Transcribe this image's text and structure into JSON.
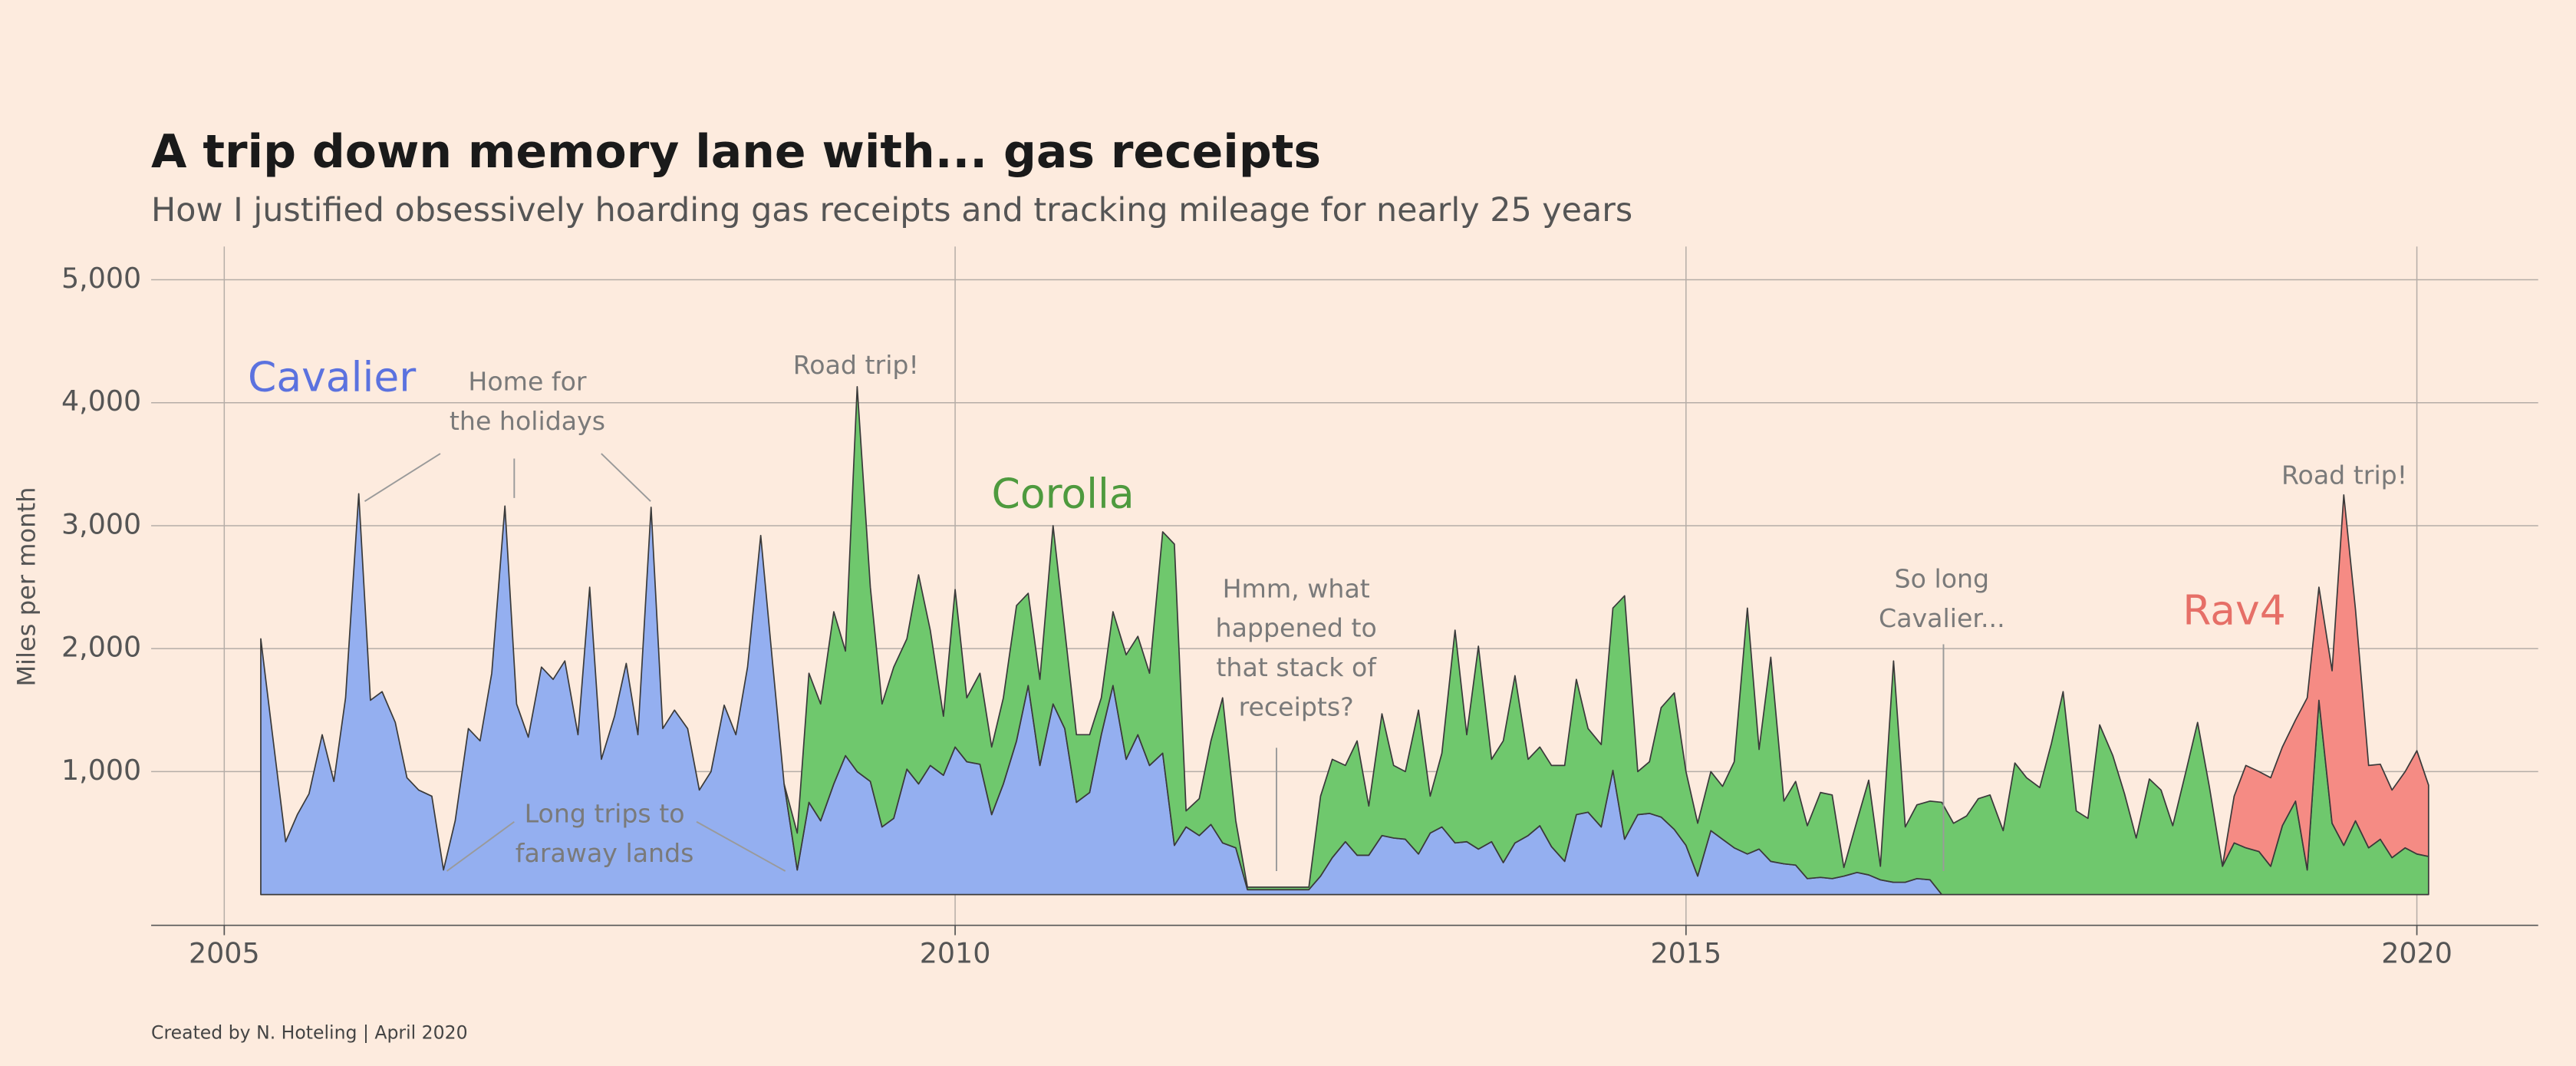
{
  "chart_data": {
    "type": "stacked_area",
    "title": "A trip down memory lane with... gas receipts",
    "subtitle": "How I justified obsessively hoarding gas receipts and tracking mileage for nearly 25 years",
    "ylabel": "Miles per month",
    "caption": "Created by N. Hoteling | April 2020",
    "xlim": [
      2004.5,
      2020.83
    ],
    "xticks": [
      2005,
      2010,
      2015,
      2020
    ],
    "ylim": [
      -250,
      5270
    ],
    "yticks": [
      {
        "value": 1000,
        "label": "1,000"
      },
      {
        "value": 2000,
        "label": "2,000"
      },
      {
        "value": 3000,
        "label": "3,000"
      },
      {
        "value": 4000,
        "label": "4,000"
      },
      {
        "value": 5000,
        "label": "5,000"
      }
    ],
    "grid": true,
    "x": [
      2005.25,
      2005.33,
      2005.42,
      2005.5,
      2005.58,
      2005.67,
      2005.75,
      2005.83,
      2005.92,
      2006.0,
      2006.08,
      2006.17,
      2006.25,
      2006.33,
      2006.42,
      2006.5,
      2006.58,
      2006.67,
      2006.75,
      2006.83,
      2006.92,
      2007.0,
      2007.08,
      2007.17,
      2007.25,
      2007.33,
      2007.42,
      2007.5,
      2007.58,
      2007.67,
      2007.75,
      2007.83,
      2007.92,
      2008.0,
      2008.08,
      2008.17,
      2008.25,
      2008.33,
      2008.42,
      2008.5,
      2008.58,
      2008.67,
      2008.75,
      2008.83,
      2008.92,
      2009.0,
      2009.08,
      2009.17,
      2009.25,
      2009.33,
      2009.42,
      2009.5,
      2009.58,
      2009.67,
      2009.75,
      2009.83,
      2009.92,
      2010.0,
      2010.08,
      2010.17,
      2010.25,
      2010.33,
      2010.42,
      2010.5,
      2010.58,
      2010.67,
      2010.75,
      2010.83,
      2010.92,
      2011.0,
      2011.08,
      2011.17,
      2011.25,
      2011.33,
      2011.42,
      2011.5,
      2011.58,
      2011.67,
      2011.75,
      2011.83,
      2011.92,
      2012.0,
      2012.08,
      2012.17,
      2012.25,
      2012.33,
      2012.42,
      2012.5,
      2012.58,
      2012.67,
      2012.75,
      2012.83,
      2012.92,
      2013.0,
      2013.08,
      2013.17,
      2013.25,
      2013.33,
      2013.42,
      2013.5,
      2013.58,
      2013.67,
      2013.75,
      2013.83,
      2013.92,
      2014.0,
      2014.08,
      2014.17,
      2014.25,
      2014.33,
      2014.42,
      2014.5,
      2014.58,
      2014.67,
      2014.75,
      2014.83,
      2014.92,
      2015.0,
      2015.08,
      2015.17,
      2015.25,
      2015.33,
      2015.42,
      2015.5,
      2015.58,
      2015.67,
      2015.75,
      2015.83,
      2015.92,
      2016.0,
      2016.08,
      2016.17,
      2016.25,
      2016.33,
      2016.42,
      2016.5,
      2016.58,
      2016.67,
      2016.75,
      2016.83,
      2016.92,
      2017.0,
      2017.08,
      2017.17,
      2017.25,
      2017.33,
      2017.42,
      2017.5,
      2017.58,
      2017.67,
      2017.75,
      2017.83,
      2017.92,
      2018.0,
      2018.08,
      2018.17,
      2018.25,
      2018.33,
      2018.42,
      2018.5,
      2018.58,
      2018.67,
      2018.75,
      2018.83,
      2018.92,
      2019.0,
      2019.08,
      2019.17,
      2019.25,
      2019.33,
      2019.42,
      2019.5,
      2019.58,
      2019.67,
      2019.75,
      2019.83,
      2019.92,
      2020.0,
      2020.08
    ],
    "series": [
      {
        "name": "Cavalier",
        "color": "#94aff0",
        "label_color": "#5b72df",
        "values": [
          2080,
          1300,
          430,
          650,
          820,
          1300,
          920,
          1600,
          3260,
          1580,
          1650,
          1400,
          950,
          850,
          800,
          200,
          600,
          1350,
          1250,
          1800,
          3160,
          1550,
          1280,
          1850,
          1750,
          1900,
          1300,
          2500,
          1100,
          1450,
          1880,
          1300,
          3150,
          1350,
          1500,
          1350,
          850,
          1000,
          1540,
          1300,
          1850,
          2920,
          1900,
          900,
          200,
          750,
          600,
          900,
          1130,
          1000,
          920,
          550,
          620,
          1020,
          900,
          1050,
          970,
          1200,
          1080,
          1060,
          650,
          900,
          1250,
          1700,
          1050,
          1550,
          1350,
          750,
          830,
          1300,
          1700,
          1100,
          1300,
          1050,
          1150,
          400,
          550,
          480,
          570,
          420,
          380,
          40,
          40,
          40,
          40,
          40,
          40,
          150,
          300,
          430,
          320,
          320,
          480,
          460,
          450,
          330,
          500,
          550,
          420,
          430,
          370,
          430,
          260,
          420,
          480,
          560,
          390,
          270,
          650,
          670,
          550,
          1010,
          450,
          650,
          660,
          630,
          530,
          400,
          150,
          520,
          450,
          380,
          330,
          370,
          270,
          250,
          240,
          130,
          140,
          130,
          150,
          180,
          160,
          120,
          100,
          100,
          130,
          120,
          0,
          null,
          null,
          null,
          null,
          null,
          null,
          null,
          null,
          null,
          null,
          null,
          null,
          null,
          null,
          null,
          null,
          null,
          null,
          null,
          null,
          null,
          null,
          null,
          null,
          null,
          null,
          null,
          null,
          null,
          null,
          null,
          null,
          null,
          null,
          null,
          null,
          null,
          null,
          null,
          null
        ]
      },
      {
        "name": "Corolla",
        "color": "#6fc86d",
        "label_color": "#4e9a3e",
        "values": [
          null,
          null,
          null,
          null,
          null,
          null,
          null,
          null,
          null,
          null,
          null,
          null,
          null,
          null,
          null,
          null,
          null,
          null,
          null,
          null,
          null,
          null,
          null,
          null,
          null,
          null,
          null,
          null,
          null,
          null,
          null,
          null,
          null,
          null,
          null,
          null,
          null,
          null,
          null,
          null,
          null,
          null,
          null,
          0,
          300,
          1050,
          950,
          1400,
          850,
          3130,
          1580,
          1000,
          1230,
          1060,
          1700,
          1100,
          480,
          1280,
          520,
          740,
          550,
          700,
          1100,
          750,
          700,
          1450,
          800,
          550,
          470,
          300,
          600,
          850,
          800,
          750,
          1800,
          2450,
          130,
          300,
          680,
          1180,
          220,
          20,
          20,
          20,
          20,
          20,
          20,
          650,
          800,
          620,
          930,
          400,
          990,
          590,
          550,
          1170,
          300,
          600,
          1730,
          870,
          1650,
          670,
          990,
          1360,
          620,
          640,
          660,
          780,
          1100,
          680,
          670,
          1320,
          1980,
          350,
          420,
          890,
          1110,
          600,
          430,
          480,
          430,
          700,
          2000,
          810,
          1660,
          510,
          680,
          430,
          690,
          680,
          70,
          420,
          770,
          110,
          1800,
          450,
          600,
          640,
          750,
          580,
          640,
          780,
          810,
          520,
          1070,
          950,
          870,
          1230,
          1650,
          680,
          620,
          1380,
          1130,
          820,
          460,
          940,
          850,
          560,
          1000,
          1400,
          880,
          230,
          420,
          380,
          350,
          230,
          560,
          760,
          200,
          1580,
          580,
          400,
          600,
          380,
          450,
          300,
          380,
          330,
          310
        ]
      },
      {
        "name": "Rav4",
        "color": "#f58b84",
        "label_color": "#e66f67",
        "values": [
          null,
          null,
          null,
          null,
          null,
          null,
          null,
          null,
          null,
          null,
          null,
          null,
          null,
          null,
          null,
          null,
          null,
          null,
          null,
          null,
          null,
          null,
          null,
          null,
          null,
          null,
          null,
          null,
          null,
          null,
          null,
          null,
          null,
          null,
          null,
          null,
          null,
          null,
          null,
          null,
          null,
          null,
          null,
          null,
          null,
          null,
          null,
          null,
          null,
          null,
          null,
          null,
          null,
          null,
          null,
          null,
          null,
          null,
          null,
          null,
          null,
          null,
          null,
          null,
          null,
          null,
          null,
          null,
          null,
          null,
          null,
          null,
          null,
          null,
          null,
          null,
          null,
          null,
          null,
          null,
          null,
          null,
          null,
          null,
          null,
          null,
          null,
          null,
          null,
          null,
          null,
          null,
          null,
          null,
          null,
          null,
          null,
          null,
          null,
          null,
          null,
          null,
          null,
          null,
          null,
          null,
          null,
          null,
          null,
          null,
          null,
          null,
          null,
          null,
          null,
          null,
          null,
          null,
          null,
          null,
          null,
          null,
          null,
          null,
          null,
          null,
          null,
          null,
          null,
          null,
          null,
          null,
          null,
          null,
          null,
          null,
          null,
          null,
          null,
          null,
          null,
          null,
          null,
          null,
          null,
          null,
          null,
          null,
          null,
          null,
          null,
          null,
          null,
          null,
          null,
          null,
          null,
          null,
          null,
          null,
          null,
          0,
          380,
          670,
          650,
          720,
          640,
          660,
          1400,
          920,
          1240,
          2850,
          1720,
          670,
          610,
          550,
          620,
          840,
          580
        ]
      }
    ],
    "annotations": [
      {
        "text": [
          "Home for",
          "the holidays"
        ]
      },
      {
        "text": [
          "Road trip!"
        ]
      },
      {
        "text": [
          "Long trips to",
          "faraway lands"
        ]
      },
      {
        "text": [
          "Hmm, what",
          "happened to",
          "that stack of",
          "receipts?"
        ]
      },
      {
        "text": [
          "So long",
          "Cavalier..."
        ]
      },
      {
        "text": [
          "Road trip!"
        ]
      }
    ]
  }
}
